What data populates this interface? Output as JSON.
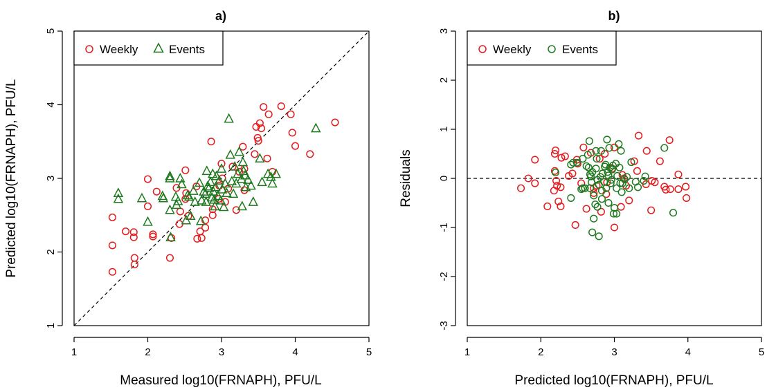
{
  "colors": {
    "weekly": "#e41a1c",
    "events": "#1f7a1f"
  },
  "chart_data": [
    {
      "type": "scatter",
      "title": "a)",
      "xlabel": "Measured log10(FRNAPH), PFU/L",
      "ylabel": "Predicted log10(FRNAPH), PFU/L",
      "xlim": [
        1,
        5
      ],
      "ylim": [
        1,
        5
      ],
      "xticks": [
        "1",
        "2",
        "3",
        "4",
        "5"
      ],
      "yticks": [
        "1",
        "2",
        "3",
        "4",
        "5"
      ],
      "reference_line": "y = x",
      "legend": {
        "position": "top-left",
        "entries": [
          "Weekly",
          "Events"
        ]
      },
      "series": [
        {
          "name": "Weekly",
          "marker": "circle",
          "points": [
            [
              1.52,
              2.47
            ],
            [
              1.52,
              2.09
            ],
            [
              1.52,
              1.73
            ],
            [
              1.7,
              2.28
            ],
            [
              1.81,
              2.27
            ],
            [
              1.81,
              2.2
            ],
            [
              1.82,
              1.92
            ],
            [
              1.82,
              1.83
            ],
            [
              2.0,
              2.99
            ],
            [
              2.0,
              2.62
            ],
            [
              2.07,
              2.24
            ],
            [
              2.07,
              2.21
            ],
            [
              2.12,
              2.82
            ],
            [
              2.3,
              1.92
            ],
            [
              2.32,
              2.19
            ],
            [
              2.39,
              2.87
            ],
            [
              2.43,
              2.38
            ],
            [
              2.44,
              2.55
            ],
            [
              2.51,
              3.11
            ],
            [
              2.51,
              2.72
            ],
            [
              2.55,
              2.49
            ],
            [
              2.66,
              2.89
            ],
            [
              2.67,
              2.18
            ],
            [
              2.71,
              2.28
            ],
            [
              2.73,
              2.19
            ],
            [
              2.78,
              2.43
            ],
            [
              2.78,
              2.33
            ],
            [
              2.86,
              3.5
            ],
            [
              2.88,
              2.58
            ],
            [
              2.88,
              2.5
            ],
            [
              2.96,
              2.72
            ],
            [
              3.0,
              3.2
            ],
            [
              3.01,
              3.0
            ],
            [
              3.05,
              2.68
            ],
            [
              3.09,
              2.86
            ],
            [
              3.15,
              3.16
            ],
            [
              3.2,
              2.57
            ],
            [
              3.24,
              3.09
            ],
            [
              3.29,
              3.43
            ],
            [
              3.31,
              3.13
            ],
            [
              3.31,
              2.84
            ],
            [
              3.45,
              3.33
            ],
            [
              3.47,
              3.7
            ],
            [
              3.49,
              3.55
            ],
            [
              3.5,
              3.51
            ],
            [
              3.52,
              3.75
            ],
            [
              3.54,
              3.68
            ],
            [
              3.57,
              3.97
            ],
            [
              3.62,
              3.27
            ],
            [
              3.64,
              3.87
            ],
            [
              3.69,
              3.09
            ],
            [
              3.81,
              3.98
            ],
            [
              3.94,
              3.87
            ],
            [
              3.96,
              3.62
            ],
            [
              4.0,
              3.44
            ],
            [
              4.2,
              3.33
            ],
            [
              4.54,
              3.76
            ],
            [
              2.97,
              2.9
            ],
            [
              2.52,
              2.8
            ]
          ]
        },
        {
          "name": "Events",
          "marker": "triangle",
          "points": [
            [
              1.6,
              2.8
            ],
            [
              1.6,
              2.72
            ],
            [
              1.92,
              2.73
            ],
            [
              2.0,
              2.41
            ],
            [
              2.2,
              2.76
            ],
            [
              2.21,
              2.73
            ],
            [
              2.3,
              3.03
            ],
            [
              2.3,
              3.0
            ],
            [
              2.3,
              2.57
            ],
            [
              2.31,
              2.2
            ],
            [
              2.38,
              2.75
            ],
            [
              2.39,
              2.64
            ],
            [
              2.41,
              2.69
            ],
            [
              2.44,
              3.0
            ],
            [
              2.46,
              2.92
            ],
            [
              2.52,
              2.43
            ],
            [
              2.54,
              2.77
            ],
            [
              2.56,
              2.75
            ],
            [
              2.58,
              2.49
            ],
            [
              2.62,
              2.83
            ],
            [
              2.64,
              2.68
            ],
            [
              2.7,
              2.94
            ],
            [
              2.72,
              2.42
            ],
            [
              2.73,
              2.7
            ],
            [
              2.76,
              2.82
            ],
            [
              2.78,
              2.79
            ],
            [
              2.79,
              2.68
            ],
            [
              2.8,
              3.1
            ],
            [
              2.81,
              2.89
            ],
            [
              2.83,
              2.87
            ],
            [
              2.85,
              2.95
            ],
            [
              2.87,
              2.74
            ],
            [
              2.88,
              3.06
            ],
            [
              2.89,
              2.82
            ],
            [
              2.9,
              2.71
            ],
            [
              2.91,
              2.62
            ],
            [
              2.92,
              2.88
            ],
            [
              2.93,
              3.03
            ],
            [
              2.95,
              2.76
            ],
            [
              2.97,
              2.97
            ],
            [
              2.99,
              2.7
            ],
            [
              3.0,
              3.13
            ],
            [
              3.01,
              2.85
            ],
            [
              3.03,
              2.61
            ],
            [
              3.05,
              2.93
            ],
            [
              3.07,
              2.8
            ],
            [
              3.1,
              3.81
            ],
            [
              3.12,
              3.32
            ],
            [
              3.14,
              2.96
            ],
            [
              3.16,
              2.79
            ],
            [
              3.18,
              3.16
            ],
            [
              3.2,
              2.93
            ],
            [
              3.22,
              3.06
            ],
            [
              3.24,
              3.36
            ],
            [
              3.27,
              2.99
            ],
            [
              3.28,
              2.62
            ],
            [
              3.29,
              3.22
            ],
            [
              3.3,
              3.1
            ],
            [
              3.32,
              3.04
            ],
            [
              3.33,
              2.88
            ],
            [
              3.36,
              2.98
            ],
            [
              3.4,
              2.9
            ],
            [
              3.43,
              2.68
            ],
            [
              3.52,
              3.27
            ],
            [
              3.55,
              2.95
            ],
            [
              3.63,
              3.06
            ],
            [
              3.67,
              3.02
            ],
            [
              3.69,
              2.93
            ],
            [
              3.74,
              3.06
            ],
            [
              4.28,
              3.68
            ]
          ]
        }
      ]
    },
    {
      "type": "scatter",
      "title": "b)",
      "xlabel": "Predicted log10(FRNAPH), PFU/L",
      "ylabel": "Residuals",
      "xlim": [
        1,
        5
      ],
      "ylim": [
        -3,
        3
      ],
      "xticks": [
        "1",
        "2",
        "3",
        "4",
        "5"
      ],
      "yticks": [
        "-3",
        "-2",
        "-1",
        "0",
        "1",
        "2",
        "3"
      ],
      "reference_line": "y = 0",
      "legend": {
        "position": "top-left",
        "entries": [
          "Weekly",
          "Events"
        ]
      },
      "series": [
        {
          "name": "Weekly",
          "marker": "circle",
          "points": [
            [
              1.73,
              -0.2
            ],
            [
              1.83,
              0.0
            ],
            [
              1.92,
              -0.1
            ],
            [
              1.92,
              0.38
            ],
            [
              2.09,
              -0.57
            ],
            [
              2.18,
              -0.25
            ],
            [
              2.19,
              0.15
            ],
            [
              2.19,
              0.5
            ],
            [
              2.2,
              0.57
            ],
            [
              2.21,
              -0.05
            ],
            [
              2.22,
              -0.15
            ],
            [
              2.24,
              -0.47
            ],
            [
              2.27,
              -0.18
            ],
            [
              2.27,
              -0.57
            ],
            [
              2.28,
              0.42
            ],
            [
              2.33,
              0.45
            ],
            [
              2.38,
              0.05
            ],
            [
              2.43,
              0.1
            ],
            [
              2.47,
              -0.95
            ],
            [
              2.49,
              0.38
            ],
            [
              2.5,
              0.3
            ],
            [
              2.55,
              -0.1
            ],
            [
              2.58,
              0.63
            ],
            [
              2.62,
              -0.62
            ],
            [
              2.68,
              0.52
            ],
            [
              2.72,
              -0.2
            ],
            [
              2.72,
              -0.3
            ],
            [
              2.76,
              -0.15
            ],
            [
              2.8,
              0.4
            ],
            [
              2.82,
              -0.68
            ],
            [
              2.84,
              0.1
            ],
            [
              2.87,
              0.5
            ],
            [
              2.89,
              -0.32
            ],
            [
              2.9,
              -0.08
            ],
            [
              2.97,
              0.2
            ],
            [
              3.0,
              0.63
            ],
            [
              3.0,
              -1.0
            ],
            [
              3.09,
              -0.58
            ],
            [
              3.11,
              0.07
            ],
            [
              3.13,
              0.0
            ],
            [
              3.16,
              -0.15
            ],
            [
              3.2,
              -0.45
            ],
            [
              3.27,
              0.35
            ],
            [
              3.31,
              0.15
            ],
            [
              3.33,
              0.87
            ],
            [
              3.43,
              -0.12
            ],
            [
              3.44,
              0.56
            ],
            [
              3.5,
              -0.65
            ],
            [
              3.51,
              -0.05
            ],
            [
              3.55,
              -0.08
            ],
            [
              3.62,
              0.35
            ],
            [
              3.68,
              -0.17
            ],
            [
              3.7,
              -0.23
            ],
            [
              3.75,
              0.78
            ],
            [
              3.76,
              -0.22
            ],
            [
              3.87,
              0.08
            ],
            [
              3.87,
              -0.22
            ],
            [
              3.97,
              -0.17
            ],
            [
              3.98,
              -0.4
            ]
          ]
        },
        {
          "name": "Events",
          "marker": "circle",
          "points": [
            [
              2.2,
              0.12
            ],
            [
              2.41,
              -0.4
            ],
            [
              2.41,
              0.28
            ],
            [
              2.44,
              0.32
            ],
            [
              2.49,
              0.32
            ],
            [
              2.55,
              -0.22
            ],
            [
              2.57,
              0.4
            ],
            [
              2.57,
              -0.2
            ],
            [
              2.6,
              -0.2
            ],
            [
              2.62,
              0.25
            ],
            [
              2.64,
              0.48
            ],
            [
              2.65,
              0.22
            ],
            [
              2.66,
              0.76
            ],
            [
              2.67,
              0.08
            ],
            [
              2.67,
              -0.2
            ],
            [
              2.68,
              0.04
            ],
            [
              2.69,
              -0.08
            ],
            [
              2.7,
              0.13
            ],
            [
              2.7,
              -1.1
            ],
            [
              2.72,
              -0.35
            ],
            [
              2.72,
              -0.82
            ],
            [
              2.74,
              -0.53
            ],
            [
              2.75,
              0.2
            ],
            [
              2.75,
              0.56
            ],
            [
              2.76,
              0.4
            ],
            [
              2.77,
              -0.03
            ],
            [
              2.77,
              -0.58
            ],
            [
              2.79,
              -0.13
            ],
            [
              2.79,
              -1.18
            ],
            [
              2.81,
              0.03
            ],
            [
              2.82,
              0.56
            ],
            [
              2.83,
              -0.42
            ],
            [
              2.83,
              -0.25
            ],
            [
              2.84,
              0.1
            ],
            [
              2.86,
              -0.07
            ],
            [
              2.87,
              0.24
            ],
            [
              2.88,
              0.28
            ],
            [
              2.89,
              -0.2
            ],
            [
              2.9,
              0.79
            ],
            [
              2.91,
              0.13
            ],
            [
              2.92,
              0.06
            ],
            [
              2.92,
              -0.5
            ],
            [
              2.93,
              0.62
            ],
            [
              2.94,
              0.22
            ],
            [
              2.95,
              -0.1
            ],
            [
              2.96,
              -0.03
            ],
            [
              2.97,
              0.18
            ],
            [
              2.98,
              0.26
            ],
            [
              2.99,
              -0.72
            ],
            [
              3.0,
              -0.6
            ],
            [
              3.02,
              0.3
            ],
            [
              3.03,
              -0.2
            ],
            [
              3.03,
              -0.72
            ],
            [
              3.04,
              0.05
            ],
            [
              3.06,
              0.7
            ],
            [
              3.07,
              0.22
            ],
            [
              3.08,
              -0.1
            ],
            [
              3.09,
              0.56
            ],
            [
              3.1,
              -0.28
            ],
            [
              3.11,
              -0.1
            ],
            [
              3.14,
              -0.02
            ],
            [
              3.17,
              0.03
            ],
            [
              3.2,
              -0.2
            ],
            [
              3.23,
              0.33
            ],
            [
              3.29,
              -0.07
            ],
            [
              3.32,
              -0.18
            ],
            [
              3.4,
              -0.05
            ],
            [
              3.42,
              0.04
            ],
            [
              3.68,
              0.62
            ],
            [
              3.8,
              -0.7
            ]
          ]
        }
      ]
    }
  ]
}
